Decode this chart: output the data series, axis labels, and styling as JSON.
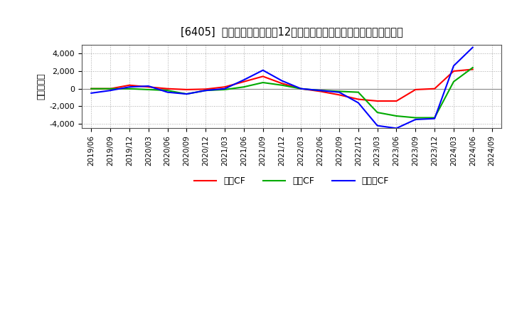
{
  "title": "[6405]  キャッシュフローの12か月移動合計の対前年同期増減額の推移",
  "ylabel": "（百万円）",
  "ylim": [
    -4500,
    5000
  ],
  "yticks": [
    -4000,
    -2000,
    0,
    2000,
    4000
  ],
  "background_color": "#ffffff",
  "plot_bg_color": "#ffffff",
  "grid_color": "#aaaaaa",
  "line_color_zero": "#888888",
  "dates": [
    "2019/06",
    "2019/09",
    "2019/12",
    "2020/03",
    "2020/06",
    "2020/09",
    "2020/12",
    "2021/03",
    "2021/06",
    "2021/09",
    "2021/12",
    "2022/03",
    "2022/06",
    "2022/09",
    "2022/12",
    "2023/03",
    "2023/06",
    "2023/09",
    "2023/12",
    "2024/03",
    "2024/06",
    "2024/09"
  ],
  "series": {
    "営業CF": {
      "color": "#ff0000",
      "values": [
        0,
        0,
        400,
        200,
        0,
        -100,
        -50,
        200,
        800,
        1400,
        600,
        0,
        -300,
        -700,
        -1200,
        -1400,
        -1400,
        -100,
        0,
        2000,
        2200,
        null
      ]
    },
    "投資CF": {
      "color": "#00aa00",
      "values": [
        0,
        0,
        0,
        -100,
        -200,
        -600,
        -200,
        -100,
        200,
        700,
        400,
        0,
        -200,
        -300,
        -400,
        -2700,
        -3100,
        -3300,
        -3300,
        800,
        2400,
        null
      ]
    },
    "フリーCF": {
      "color": "#0000ff",
      "values": [
        -500,
        -200,
        200,
        300,
        -400,
        -600,
        -200,
        0,
        1000,
        2100,
        900,
        0,
        -200,
        -400,
        -1600,
        -4200,
        -4500,
        -3500,
        -3400,
        2600,
        4700,
        null
      ]
    }
  },
  "legend_labels": [
    "営業CF",
    "投資CF",
    "フリーCF"
  ],
  "legend_colors": [
    "#ff0000",
    "#00aa00",
    "#0000ff"
  ]
}
